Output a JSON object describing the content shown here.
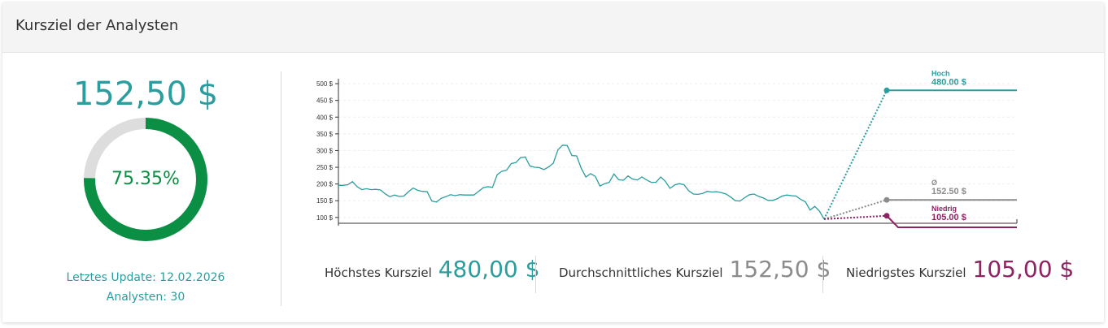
{
  "card": {
    "title": "Kursziel der Analysten"
  },
  "summary": {
    "price": "152,50 $",
    "percent_label": "75.35%",
    "percent_value": 75.35,
    "last_update": "Letztes Update: 12.02.2026",
    "analysts": "Analysten: 30"
  },
  "colors": {
    "high": "#2a9d9f",
    "avg": "#8c8c8c",
    "low": "#8e2364",
    "donut": "#0a8f44",
    "donut_track": "#dddddd",
    "meta": "#2a9d9f"
  },
  "stats": {
    "high_label": "Höchstes Kursziel",
    "high_value": "480,00 $",
    "avg_label": "Durchschnittliches Kursziel",
    "avg_value": "152,50 $",
    "low_label": "Niedrigstes Kursziel",
    "low_value": "105,00 $"
  },
  "chart_data": {
    "type": "line",
    "ylim": [
      85,
      505
    ],
    "y_ticks": [
      100,
      150,
      200,
      250,
      300,
      350,
      400,
      450,
      500
    ],
    "y_tick_labels": [
      "100 $",
      "150 $",
      "200 $",
      "250 $",
      "300 $",
      "350 $",
      "400 $",
      "450 $",
      "500 $"
    ],
    "grid": true,
    "series": [
      {
        "kind": "history",
        "values": [
          196,
          196,
          198,
          207,
          192,
          183,
          186,
          183,
          184,
          182,
          171,
          162,
          167,
          163,
          164,
          177,
          188,
          181,
          178,
          177,
          149,
          146,
          157,
          162,
          168,
          165,
          168,
          167,
          167,
          167,
          178,
          189,
          192,
          190,
          228,
          238,
          241,
          261,
          264,
          279,
          281,
          254,
          250,
          249,
          243,
          251,
          262,
          302,
          316,
          315,
          285,
          284,
          247,
          221,
          231,
          223,
          194,
          201,
          205,
          230,
          213,
          211,
          224,
          215,
          212,
          221,
          212,
          205,
          205,
          221,
          208,
          187,
          197,
          201,
          198,
          180,
          170,
          169,
          172,
          178,
          176,
          177,
          174,
          170,
          161,
          150,
          149,
          159,
          168,
          170,
          163,
          158,
          151,
          151,
          156,
          164,
          167,
          165,
          164,
          154,
          147,
          122,
          133,
          119,
          95
        ]
      },
      {
        "name": "Hoch",
        "value_label": "480.00 $",
        "from": 95,
        "to": 480
      },
      {
        "name": "Ø",
        "value_label": "152.50 $",
        "from": 95,
        "to": 152.5
      },
      {
        "name": "Niedrig",
        "value_label": "105.00 $",
        "from": 95,
        "to": 105
      }
    ]
  }
}
